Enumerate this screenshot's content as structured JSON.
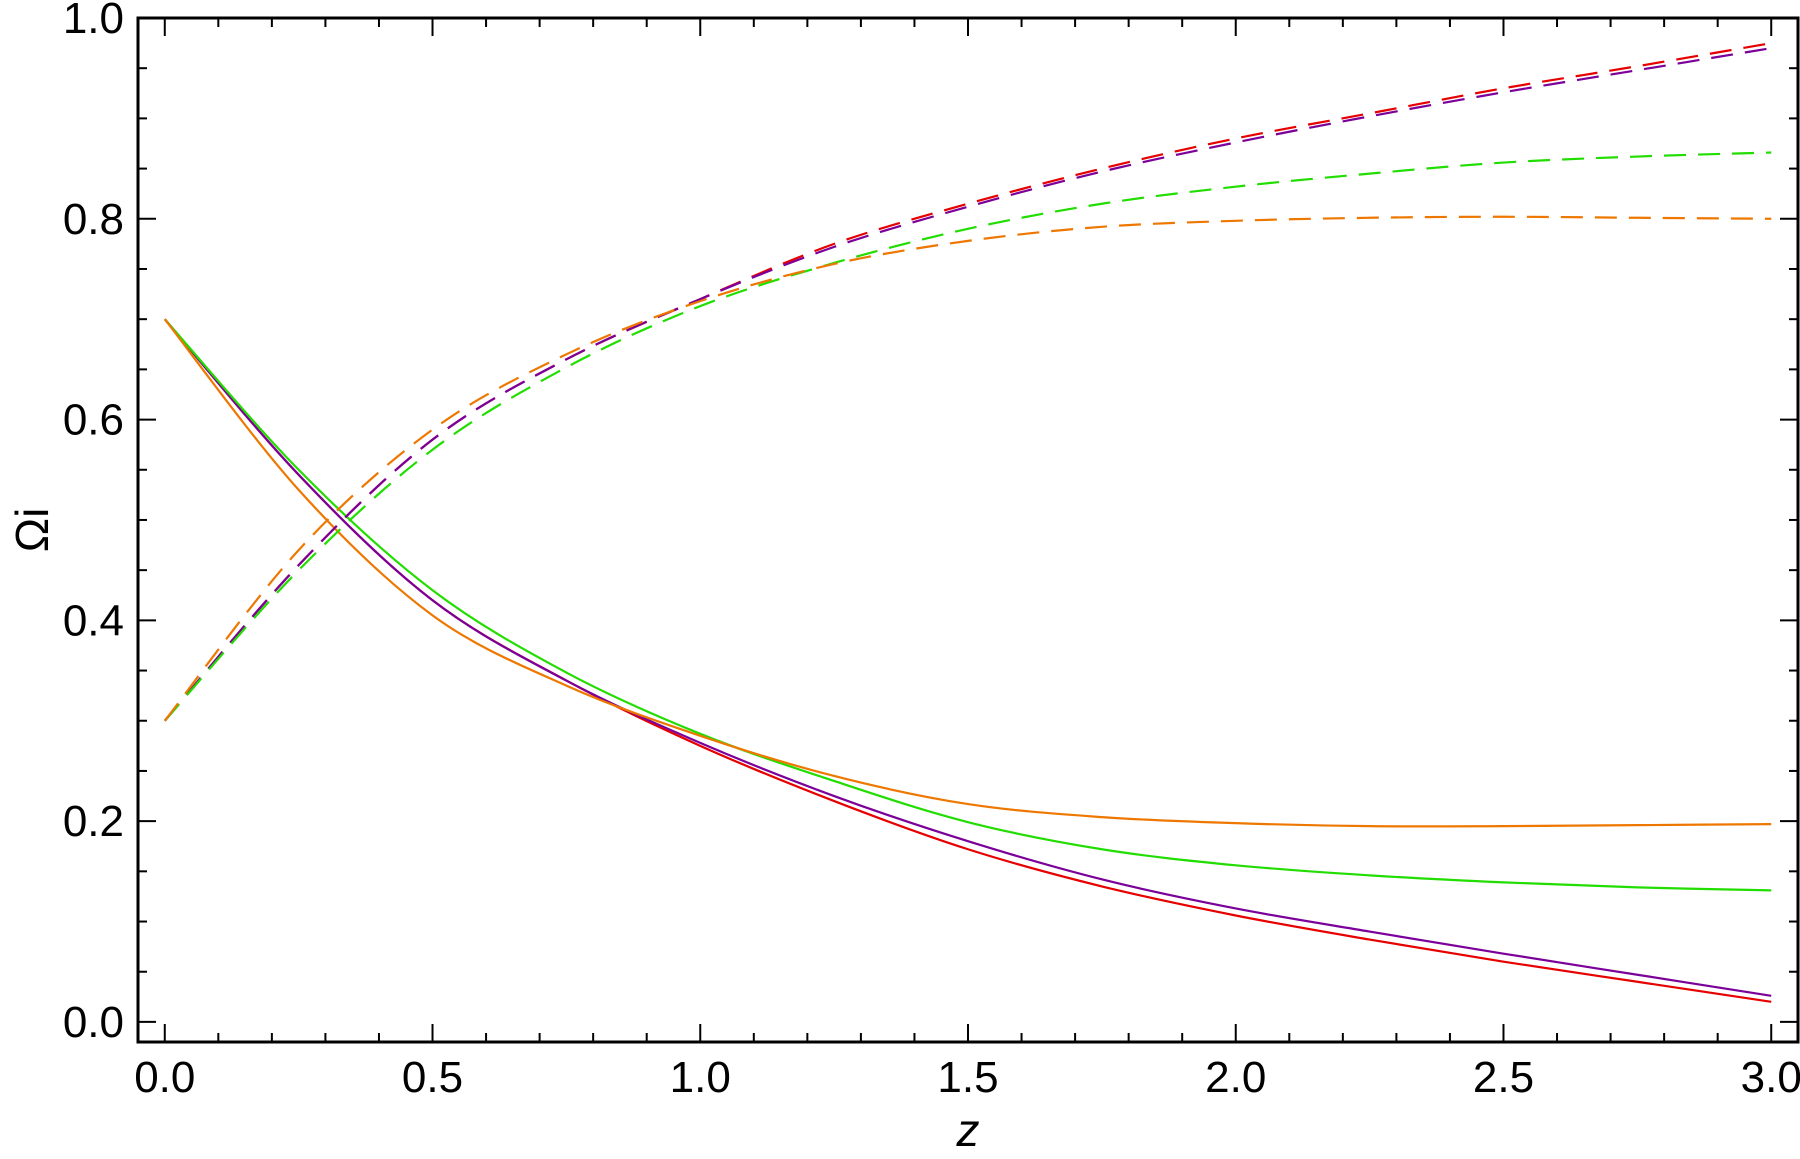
{
  "chart_data": {
    "type": "line",
    "title": "",
    "xlabel": "z",
    "ylabel": "Ωi",
    "xlim": [
      -0.05,
      3.05
    ],
    "ylim": [
      -0.02,
      1.0
    ],
    "x_ticks": [
      0.0,
      0.5,
      1.0,
      1.5,
      2.0,
      2.5,
      3.0
    ],
    "x_tick_labels": [
      "0.0",
      "0.5",
      "1.0",
      "1.5",
      "2.0",
      "2.5",
      "3.0"
    ],
    "y_ticks": [
      0.0,
      0.2,
      0.4,
      0.6,
      0.8,
      1.0
    ],
    "y_tick_labels": [
      "0.0",
      "0.2",
      "0.4",
      "0.6",
      "0.8",
      "1.0"
    ],
    "grid": false,
    "legend": "none",
    "x": [
      0.0,
      0.25,
      0.5,
      0.75,
      1.0,
      1.25,
      1.5,
      1.75,
      2.0,
      2.25,
      2.5,
      2.75,
      3.0
    ],
    "series": [
      {
        "color": "#e60000",
        "dash": "solid",
        "values": [
          0.7,
          0.545,
          0.42,
          0.34,
          0.275,
          0.22,
          0.172,
          0.135,
          0.106,
          0.082,
          0.06,
          0.04,
          0.02
        ]
      },
      {
        "color": "#7b0099",
        "dash": "solid",
        "values": [
          0.7,
          0.545,
          0.42,
          0.34,
          0.278,
          0.225,
          0.18,
          0.142,
          0.113,
          0.09,
          0.068,
          0.047,
          0.026
        ]
      },
      {
        "color": "#22dd00",
        "dash": "solid",
        "values": [
          0.7,
          0.55,
          0.43,
          0.348,
          0.287,
          0.24,
          0.199,
          0.172,
          0.156,
          0.146,
          0.139,
          0.134,
          0.131
        ]
      },
      {
        "color": "#ee7700",
        "dash": "solid",
        "values": [
          0.7,
          0.53,
          0.405,
          0.335,
          0.285,
          0.245,
          0.217,
          0.204,
          0.198,
          0.195,
          0.195,
          0.196,
          0.197
        ]
      },
      {
        "color": "#e60000",
        "dash": "dashed",
        "values": [
          0.3,
          0.455,
          0.58,
          0.66,
          0.72,
          0.775,
          0.815,
          0.85,
          0.88,
          0.905,
          0.93,
          0.952,
          0.975
        ]
      },
      {
        "color": "#7b0099",
        "dash": "dashed",
        "values": [
          0.3,
          0.455,
          0.58,
          0.66,
          0.72,
          0.772,
          0.812,
          0.847,
          0.876,
          0.902,
          0.926,
          0.948,
          0.97
        ]
      },
      {
        "color": "#22dd00",
        "dash": "dashed",
        "values": [
          0.3,
          0.45,
          0.57,
          0.652,
          0.713,
          0.756,
          0.79,
          0.815,
          0.832,
          0.845,
          0.856,
          0.862,
          0.866
        ]
      },
      {
        "color": "#ee7700",
        "dash": "dashed",
        "values": [
          0.3,
          0.47,
          0.59,
          0.665,
          0.718,
          0.755,
          0.778,
          0.792,
          0.798,
          0.801,
          0.802,
          0.801,
          0.8
        ]
      }
    ]
  }
}
